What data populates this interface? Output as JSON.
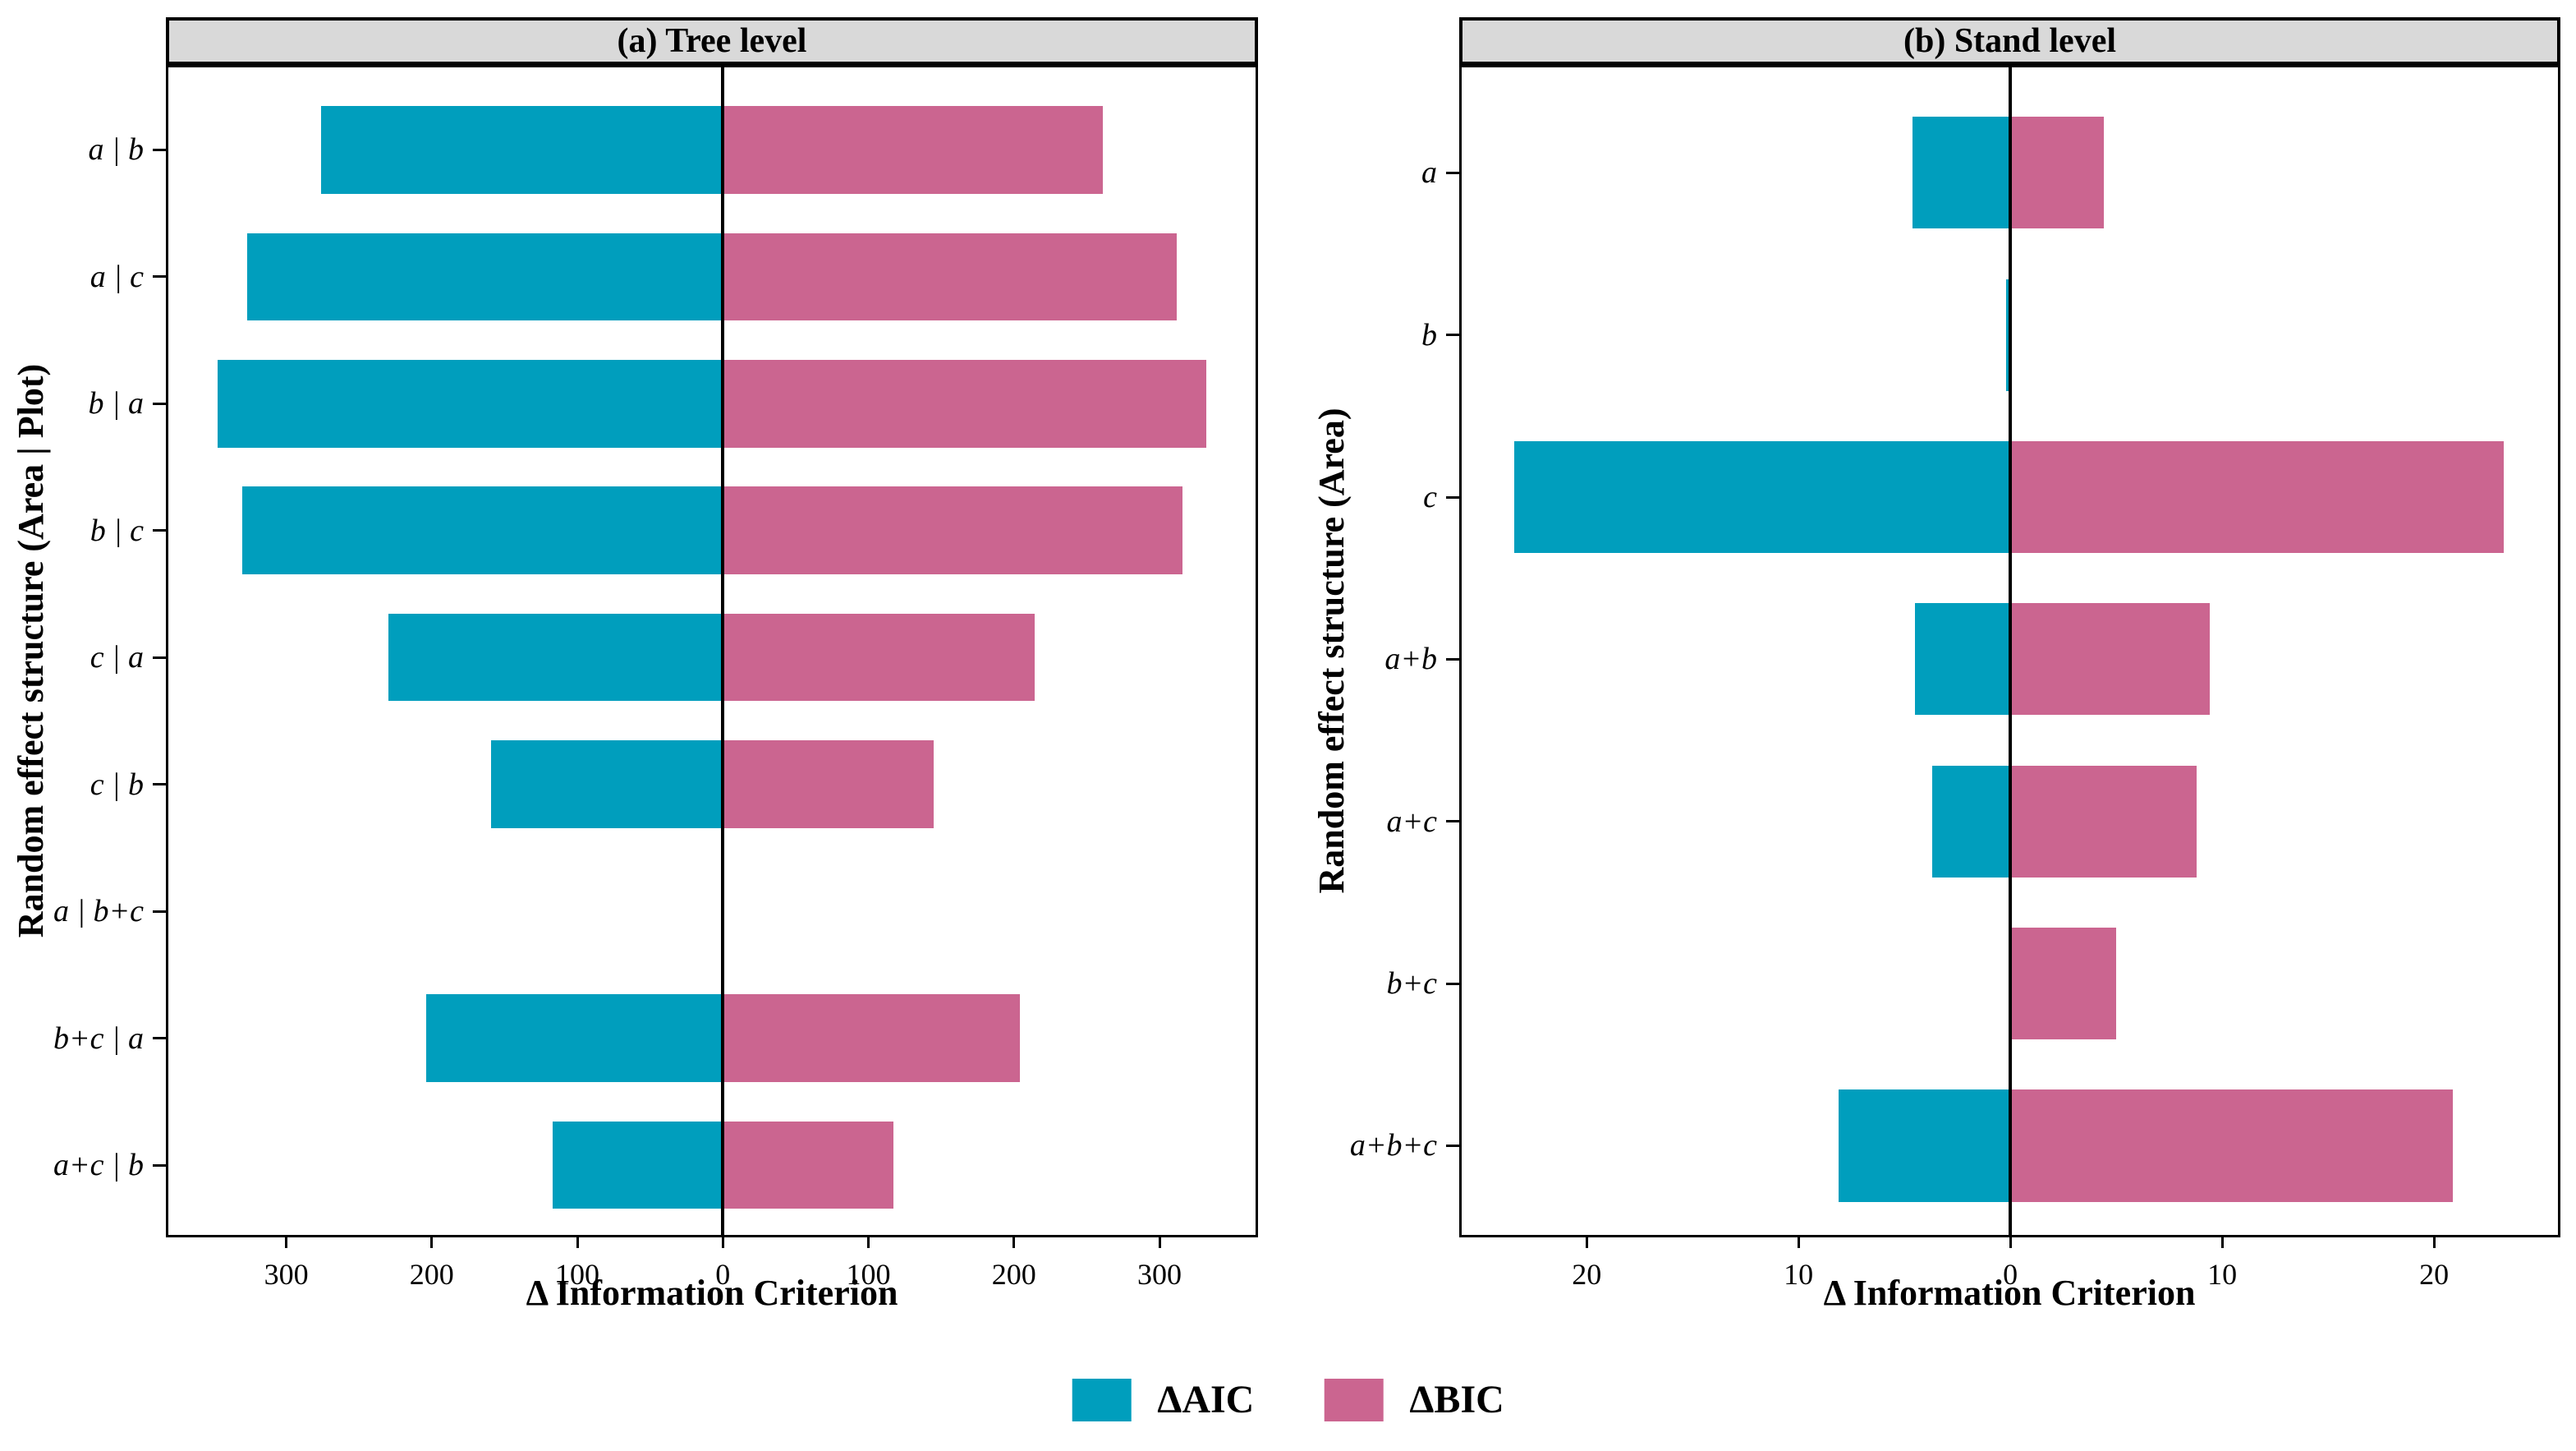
{
  "figure": {
    "kind": "faceted horizontal diverging bar chart",
    "x_axis_title_shared": "Δ Information Criterion"
  },
  "colors": {
    "aic": "#009EBD",
    "bic": "#CB6590",
    "strip_background": "#D9D9D9",
    "axis_line": "#000000"
  },
  "chart_data": [
    {
      "id": "a",
      "type": "bar",
      "orientation": "horizontal-diverging",
      "panel_title": "(a) Tree level",
      "y_axis_title": "Random effect structure (Area | Plot)",
      "x_axis_title": "Δ Information Criterion",
      "categories": [
        "a | b",
        "a | c",
        "b | a",
        "b | c",
        "c | a",
        "c | b",
        "a | b+c",
        "b+c | a",
        "a+c | b"
      ],
      "series": [
        {
          "name": "ΔAIC",
          "direction": "left",
          "color": "#009EBD",
          "values": [
            276,
            327,
            347,
            330,
            230,
            159,
            0,
            204,
            117
          ]
        },
        {
          "name": "ΔBIC",
          "direction": "right",
          "color": "#CB6590",
          "values": [
            261,
            312,
            332,
            316,
            214,
            145,
            0,
            204,
            117
          ]
        }
      ],
      "x_ticks": [
        -300,
        -200,
        -100,
        0,
        100,
        200,
        300
      ],
      "x_tick_labels": [
        "300",
        "200",
        "100",
        "0",
        "100",
        "200",
        "300"
      ],
      "xlim": [
        -381,
        366
      ],
      "grid": "off",
      "zero_reference_line": true
    },
    {
      "id": "b",
      "type": "bar",
      "orientation": "horizontal-diverging",
      "panel_title": "(b) Stand level",
      "y_axis_title": "Random effect structure (Area)",
      "x_axis_title": "Δ Information Criterion",
      "categories": [
        "a",
        "b",
        "c",
        "a+b",
        "a+c",
        "b+c",
        "a+b+c"
      ],
      "series": [
        {
          "name": "ΔAIC",
          "direction": "left",
          "color": "#009EBD",
          "values": [
            4.6,
            0.2,
            23.4,
            4.5,
            3.7,
            0,
            8.1
          ]
        },
        {
          "name": "ΔBIC",
          "direction": "right",
          "color": "#CB6590",
          "values": [
            4.4,
            0,
            23.3,
            9.4,
            8.8,
            5.0,
            20.9
          ]
        }
      ],
      "x_ticks": [
        -20,
        -10,
        0,
        10,
        20
      ],
      "x_tick_labels": [
        "20",
        "10",
        "0",
        "10",
        "20"
      ],
      "xlim": [
        -25.9,
        25.85
      ],
      "grid": "off",
      "zero_reference_line": true
    }
  ],
  "legend": {
    "position": "bottom-center",
    "items": [
      {
        "label": "ΔAIC",
        "color": "#009EBD"
      },
      {
        "label": "ΔBIC",
        "color": "#CB6590"
      }
    ]
  }
}
